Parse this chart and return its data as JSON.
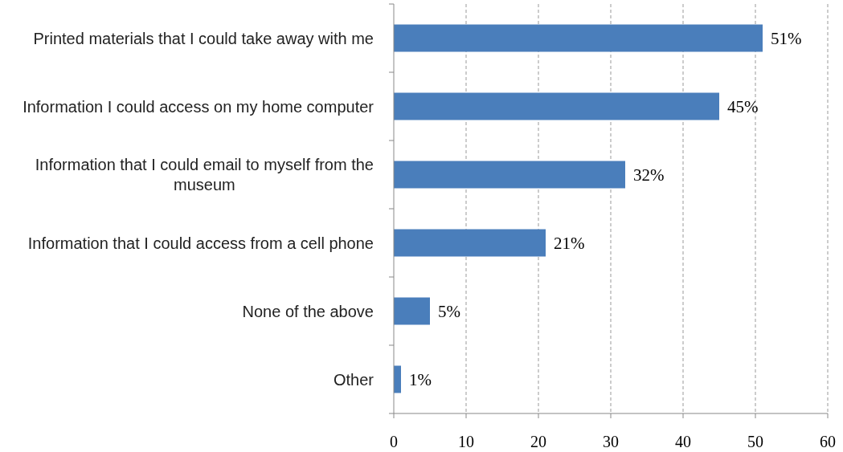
{
  "chart_data": {
    "type": "bar",
    "orientation": "horizontal",
    "categories": [
      "Printed materials that I could take away with me",
      "Information I could access on my home computer",
      "Information that I could email to myself from the museum",
      "Information that I could access from a cell phone",
      "None of the above",
      "Other"
    ],
    "values": [
      51,
      45,
      32,
      21,
      5,
      1
    ],
    "value_labels": [
      "51%",
      "45%",
      "32%",
      "21%",
      "5%",
      "1%"
    ],
    "color": "#4a7ebb",
    "xlim": [
      0,
      60
    ],
    "xticks": [
      0,
      10,
      20,
      30,
      40,
      50,
      60
    ],
    "grid": "x"
  }
}
